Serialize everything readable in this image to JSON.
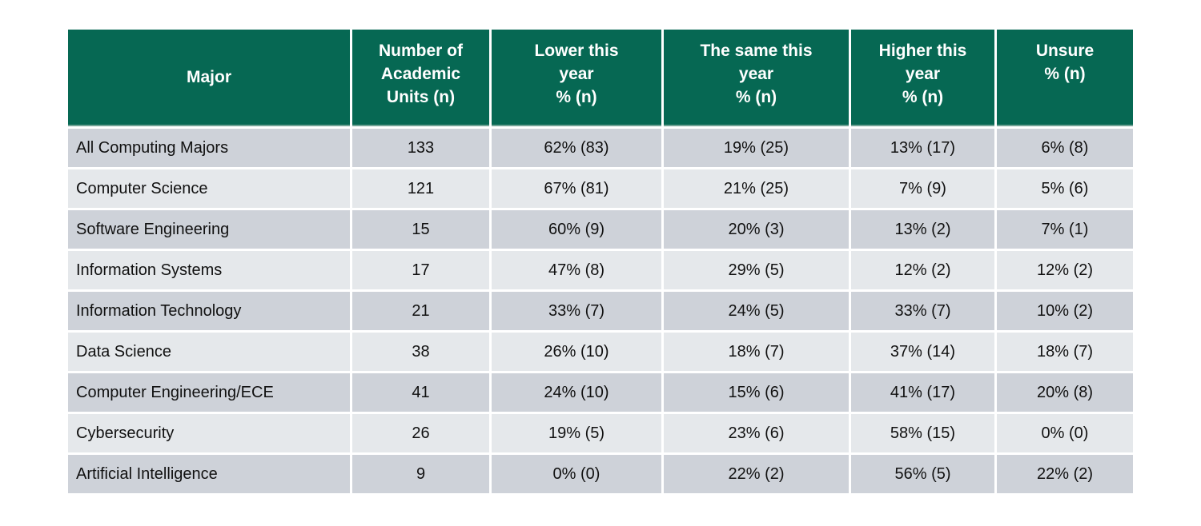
{
  "colors": {
    "header_bg": "#066853",
    "header_text": "#ffffff",
    "header_underline": "#6fa294",
    "row_odd": "#ced2d9",
    "row_even": "#e5e8eb",
    "body_text": "#111111",
    "page_bg": "#ffffff"
  },
  "table": {
    "header_labels": [
      "Major",
      "Number of\nAcademic\nUnits (n)",
      "Lower this\nyear\n% (n)",
      "The same this\nyear\n% (n)",
      "Higher this\nyear\n% (n)",
      "Unsure\n% (n)"
    ]
  },
  "chart_data": {
    "type": "table",
    "columns": [
      "Major",
      "Number of Academic Units (n)",
      "Lower this year % (n)",
      "The same this year % (n)",
      "Higher this year % (n)",
      "Unsure % (n)"
    ],
    "rows": [
      [
        "All Computing Majors",
        "133",
        "62% (83)",
        "19% (25)",
        "13% (17)",
        "6% (8)"
      ],
      [
        "Computer Science",
        "121",
        "67% (81)",
        "21% (25)",
        "7% (9)",
        "5% (6)"
      ],
      [
        "Software Engineering",
        "15",
        "60% (9)",
        "20% (3)",
        "13% (2)",
        "7% (1)"
      ],
      [
        "Information Systems",
        "17",
        "47% (8)",
        "29% (5)",
        "12% (2)",
        "12% (2)"
      ],
      [
        "Information Technology",
        "21",
        "33% (7)",
        "24% (5)",
        "33% (7)",
        "10% (2)"
      ],
      [
        "Data Science",
        "38",
        "26% (10)",
        "18% (7)",
        "37% (14)",
        "18% (7)"
      ],
      [
        "Computer Engineering/ECE",
        "41",
        "24% (10)",
        "15% (6)",
        "41% (17)",
        "20% (8)"
      ],
      [
        "Cybersecurity",
        "26",
        "19% (5)",
        "23% (6)",
        "58% (15)",
        "0% (0)"
      ],
      [
        "Artificial Intelligence",
        "9",
        "0% (0)",
        "22% (2)",
        "56% (5)",
        "22% (2)"
      ]
    ]
  }
}
